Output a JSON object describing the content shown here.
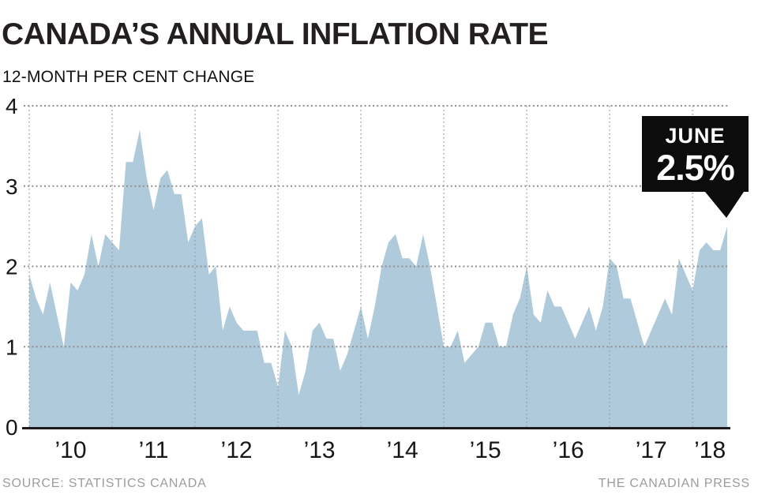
{
  "header": {
    "title": "CANADA’S ANNUAL INFLATION RATE",
    "subtitle": "12-MONTH PER CENT CHANGE"
  },
  "chart_data": {
    "type": "area",
    "title": "CANADA’S ANNUAL INFLATION RATE",
    "ylabel": "12-MONTH PER CENT CHANGE",
    "frequency": "monthly",
    "x_start": "2010-01",
    "x_end": "2018-06",
    "ylim": [
      0,
      4
    ],
    "y_ticks": [
      "0",
      "1",
      "2",
      "3",
      "4"
    ],
    "year_labels": [
      "’10",
      "’11",
      "’12",
      "’13",
      "’14",
      "’15",
      "’16",
      "’17",
      "’18"
    ],
    "grid": "dotted",
    "legend": "none",
    "series": [
      {
        "name": "Canada annual inflation rate (12-month % change)",
        "values": [
          1.9,
          1.6,
          1.4,
          1.8,
          1.4,
          1.0,
          1.8,
          1.7,
          1.9,
          2.4,
          2.0,
          2.4,
          2.3,
          2.2,
          3.3,
          3.3,
          3.7,
          3.1,
          2.7,
          3.1,
          3.2,
          2.9,
          2.9,
          2.3,
          2.5,
          2.6,
          1.9,
          2.0,
          1.2,
          1.5,
          1.3,
          1.2,
          1.2,
          1.2,
          0.8,
          0.8,
          0.5,
          1.2,
          1.0,
          0.4,
          0.7,
          1.2,
          1.3,
          1.1,
          1.1,
          0.7,
          0.9,
          1.2,
          1.5,
          1.1,
          1.5,
          2.0,
          2.3,
          2.4,
          2.1,
          2.1,
          2.0,
          2.4,
          2.0,
          1.5,
          1.0,
          1.0,
          1.2,
          0.8,
          0.9,
          1.0,
          1.3,
          1.3,
          1.0,
          1.0,
          1.4,
          1.6,
          2.0,
          1.4,
          1.3,
          1.7,
          1.5,
          1.5,
          1.3,
          1.1,
          1.3,
          1.5,
          1.2,
          1.5,
          2.1,
          2.0,
          1.6,
          1.6,
          1.3,
          1.0,
          1.2,
          1.4,
          1.6,
          1.4,
          2.1,
          1.9,
          1.7,
          2.2,
          2.3,
          2.2,
          2.2,
          2.5
        ]
      }
    ],
    "annotation": {
      "label": "JUNE",
      "value": "2.5%"
    }
  },
  "callout": {
    "month": "JUNE",
    "value": "2.5%"
  },
  "footer": {
    "source": "SOURCE: STATISTICS CANADA",
    "credit": "THE CANADIAN PRESS"
  },
  "colors": {
    "area_fill": "#afcada",
    "grid_dot_h": "#8f8f8f",
    "grid_dot_v": "#9b9b9b",
    "axis_line": "#1c1a1b",
    "tick_text": "#161616",
    "callout_bg": "#0c0c0c",
    "callout_text": "#ffffff",
    "footer_text": "#9c9c9c"
  }
}
